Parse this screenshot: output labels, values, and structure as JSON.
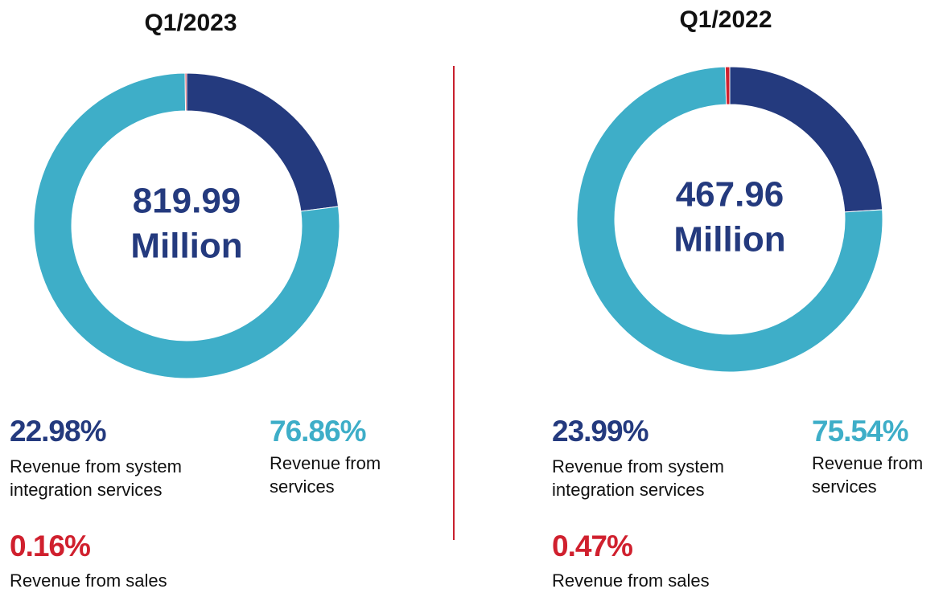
{
  "chart_data": [
    {
      "type": "pie",
      "title": "Q1/2023",
      "center_value": "819.99",
      "center_unit": "Million",
      "categories": [
        "Revenue from system integration services",
        "Revenue from services",
        "Revenue from sales"
      ],
      "values": [
        22.98,
        76.86,
        0.16
      ],
      "value_labels": [
        "22.98%",
        "76.86%",
        "0.16%"
      ],
      "colors": [
        "#243a7e",
        "#3eaec8",
        "#d0202e"
      ]
    },
    {
      "type": "pie",
      "title": "Q1/2022",
      "center_value": "467.96",
      "center_unit": "Million",
      "categories": [
        "Revenue from system integration services",
        "Revenue from services",
        "Revenue from sales"
      ],
      "values": [
        23.99,
        75.54,
        0.47
      ],
      "value_labels": [
        "23.99%",
        "75.54%",
        "0.47%"
      ],
      "colors": [
        "#243a7e",
        "#3eaec8",
        "#d0202e"
      ]
    }
  ]
}
